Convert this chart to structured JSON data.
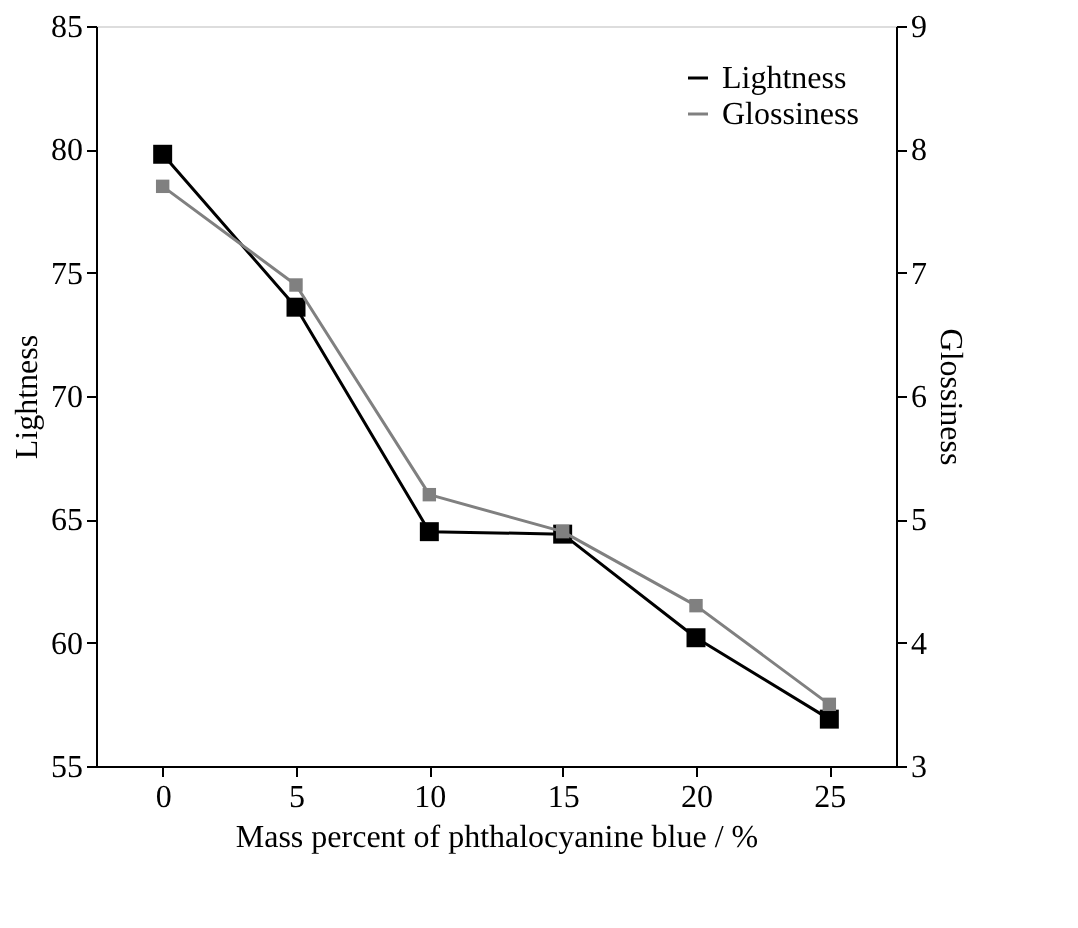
{
  "chart_data": {
    "type": "line",
    "xlabel": "Mass percent of phthalocyanine blue / %",
    "ylabel": "Lightness",
    "y2label": "Glossiness",
    "x": [
      0,
      5,
      10,
      15,
      20,
      25
    ],
    "series": [
      {
        "name": "Lightness",
        "color": "#000000",
        "values": [
          79.8,
          73.6,
          64.5,
          64.4,
          60.2,
          56.9
        ]
      },
      {
        "name": "Glossiness",
        "color": "#808080",
        "axis": "y2",
        "values": [
          7.7,
          6.9,
          5.2,
          4.9,
          4.3,
          3.5
        ]
      }
    ],
    "xlim": [
      -2.5,
      27.5
    ],
    "xticks": [
      0,
      5,
      10,
      15,
      20,
      25
    ],
    "ylim": [
      55,
      85
    ],
    "yticks": [
      55,
      60,
      65,
      70,
      75,
      80,
      85
    ],
    "y2lim": [
      3,
      9
    ],
    "y2ticks": [
      3,
      4,
      5,
      6,
      7,
      8,
      9
    ],
    "marker": "square",
    "line_style": "solid",
    "grid": false,
    "legend": "top right"
  }
}
